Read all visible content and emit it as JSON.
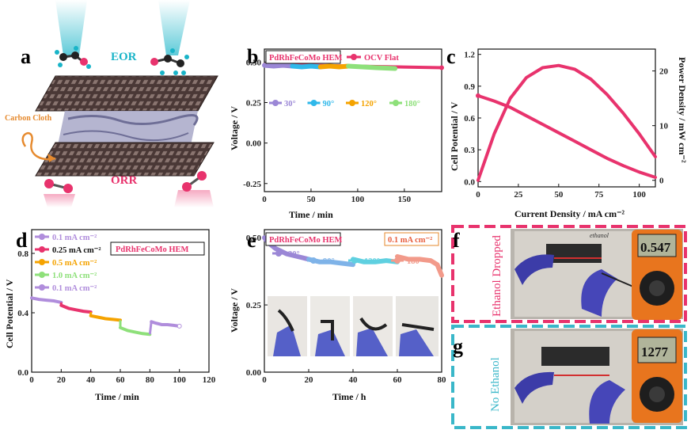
{
  "panel_letters": [
    "a",
    "b",
    "c",
    "d",
    "e",
    "f",
    "g"
  ],
  "panel_a": {
    "eor_label": "EOR",
    "orr_label": "ORR",
    "carbon_cloth_label": "Carbon Cloth",
    "colors": {
      "eor": "#19b4c8",
      "orr": "#e8336d",
      "cloth": "#3a2a28",
      "gel": "#9c9cc0",
      "carbon": "#e68a2e"
    }
  },
  "panel_f": {
    "label": "Ethanol Dropped",
    "meter_reading": "0.547",
    "note": "ethanol",
    "border_color": "#e8336d"
  },
  "panel_g": {
    "label": "No Ethanol",
    "meter_reading": "1277",
    "border_color": "#3ab7c9"
  },
  "chart_data": [
    {
      "id": "b",
      "type": "line",
      "title_box": "PdRhFeCoMo HEM",
      "xlabel": "Time / min",
      "ylabel": "Voltage / V",
      "xlim": [
        0,
        190
      ],
      "ylim": [
        -0.3,
        0.58
      ],
      "xticks": [
        0,
        50,
        100,
        150
      ],
      "yticks": [
        -0.25,
        0,
        0.25,
        0.5
      ],
      "ytick_labels": [
        "-0.25",
        "0.00",
        "0.25",
        "0.50"
      ],
      "series": [
        {
          "name": "OCV Flat",
          "color": "#e8336d",
          "x": [
            0,
            190
          ],
          "y": [
            0.485,
            0.465
          ]
        },
        {
          "name": "30°",
          "color": "#9b87d6",
          "x": [
            0,
            10,
            20,
            30
          ],
          "y": [
            0.48,
            0.475,
            0.48,
            0.475
          ]
        },
        {
          "name": "90°",
          "color": "#2fb8ea",
          "x": [
            30,
            40,
            50,
            60
          ],
          "y": [
            0.475,
            0.47,
            0.475,
            0.47
          ]
        },
        {
          "name": "120°",
          "color": "#f5a300",
          "x": [
            60,
            70,
            80,
            90
          ],
          "y": [
            0.47,
            0.475,
            0.47,
            0.475
          ]
        },
        {
          "name": "180°",
          "color": "#8ee07a",
          "x": [
            90,
            105,
            120,
            140
          ],
          "y": [
            0.475,
            0.47,
            0.465,
            0.46
          ]
        }
      ]
    },
    {
      "id": "c",
      "type": "line",
      "xlabel": "Current Density / mA cm⁻²",
      "ylabel": "Cell Potential / V",
      "y2label": "Power Density / mW cm⁻²",
      "xlim": [
        0,
        110
      ],
      "ylim": [
        -0.05,
        1.25
      ],
      "y2lim": [
        -1.2,
        24
      ],
      "xticks": [
        0,
        25,
        50,
        75,
        100
      ],
      "yticks": [
        0,
        0.3,
        0.6,
        0.9,
        1.2
      ],
      "ytick_labels": [
        "0.0",
        "0.3",
        "0.6",
        "0.9",
        "1.2"
      ],
      "y2ticks": [
        0,
        10,
        20
      ],
      "series": [
        {
          "name": "Cell Potential",
          "axis": "left",
          "color": "#e8336d",
          "x": [
            0,
            10,
            20,
            30,
            40,
            50,
            60,
            70,
            80,
            90,
            100,
            110
          ],
          "y": [
            0.81,
            0.76,
            0.7,
            0.62,
            0.54,
            0.46,
            0.38,
            0.3,
            0.22,
            0.15,
            0.09,
            0.04
          ]
        },
        {
          "name": "Power Density",
          "axis": "right",
          "color": "#e8336d",
          "x": [
            0,
            10,
            20,
            30,
            40,
            50,
            60,
            70,
            80,
            90,
            100,
            110
          ],
          "y": [
            0,
            8.5,
            15,
            18.8,
            20.6,
            21,
            20.3,
            18.5,
            15.7,
            12.3,
            8.5,
            4.3
          ]
        }
      ]
    },
    {
      "id": "d",
      "type": "line",
      "title_box": "PdRhFeCoMo HEM",
      "xlabel": "Time / min",
      "ylabel": "Cell Potential / V",
      "xlim": [
        0,
        120
      ],
      "ylim": [
        0,
        0.96
      ],
      "xticks": [
        0,
        20,
        40,
        60,
        80,
        100,
        120
      ],
      "yticks": [
        0,
        0.4,
        0.8
      ],
      "ytick_labels": [
        "0.0",
        "0.4",
        "0.8"
      ],
      "series": [
        {
          "name": "0.1 mA cm⁻²",
          "color": "#b08ddc",
          "x": [
            0,
            5,
            10,
            15,
            20
          ],
          "y": [
            0.5,
            0.49,
            0.485,
            0.48,
            0.47
          ]
        },
        {
          "name": "0.25 mA cm⁻²",
          "color": "#e8336d",
          "x": [
            20,
            25,
            30,
            35,
            40
          ],
          "y": [
            0.45,
            0.43,
            0.42,
            0.41,
            0.405
          ]
        },
        {
          "name": "0.5 mA cm⁻²",
          "color": "#f5a300",
          "x": [
            40,
            45,
            50,
            55,
            60
          ],
          "y": [
            0.38,
            0.37,
            0.36,
            0.355,
            0.35
          ]
        },
        {
          "name": "1.0 mA cm⁻²",
          "color": "#8ee07a",
          "x": [
            60,
            65,
            70,
            75,
            80
          ],
          "y": [
            0.3,
            0.28,
            0.27,
            0.26,
            0.255
          ]
        },
        {
          "name": "0.1 mA cm⁻²",
          "color": "#b08ddc",
          "x": [
            81,
            84,
            88,
            92,
            96,
            100
          ],
          "y": [
            0.34,
            0.33,
            0.32,
            0.32,
            0.315,
            0.31
          ]
        }
      ]
    },
    {
      "id": "e",
      "type": "line",
      "title_box": "PdRhFeCoMo HEM",
      "current_box": "0.1 mA cm⁻²",
      "xlabel": "Time / h",
      "ylabel": "Voltage / V",
      "xlim": [
        0,
        80
      ],
      "ylim": [
        0,
        0.53
      ],
      "xticks": [
        0,
        20,
        40,
        60,
        80
      ],
      "yticks": [
        0,
        0.25,
        0.5
      ],
      "ytick_labels": [
        "0.00",
        "0.25",
        "0.50"
      ],
      "series": [
        {
          "name": "30°",
          "color": "#9b87d6",
          "x": [
            0,
            2,
            5,
            10,
            15,
            20
          ],
          "y": [
            0.5,
            0.48,
            0.46,
            0.44,
            0.43,
            0.42
          ]
        },
        {
          "name": "90°",
          "color": "#7fb3e8",
          "x": [
            20,
            25,
            30,
            35,
            40
          ],
          "y": [
            0.42,
            0.41,
            0.41,
            0.405,
            0.4
          ]
        },
        {
          "name": "120°",
          "color": "#5fd0e0",
          "x": [
            40,
            45,
            50,
            55,
            60
          ],
          "y": [
            0.42,
            0.41,
            0.41,
            0.415,
            0.41
          ]
        },
        {
          "name": "180°",
          "color": "#f29a8a",
          "x": [
            60,
            65,
            70,
            75,
            78,
            80
          ],
          "y": [
            0.43,
            0.42,
            0.42,
            0.415,
            0.4,
            0.36
          ]
        }
      ]
    }
  ]
}
